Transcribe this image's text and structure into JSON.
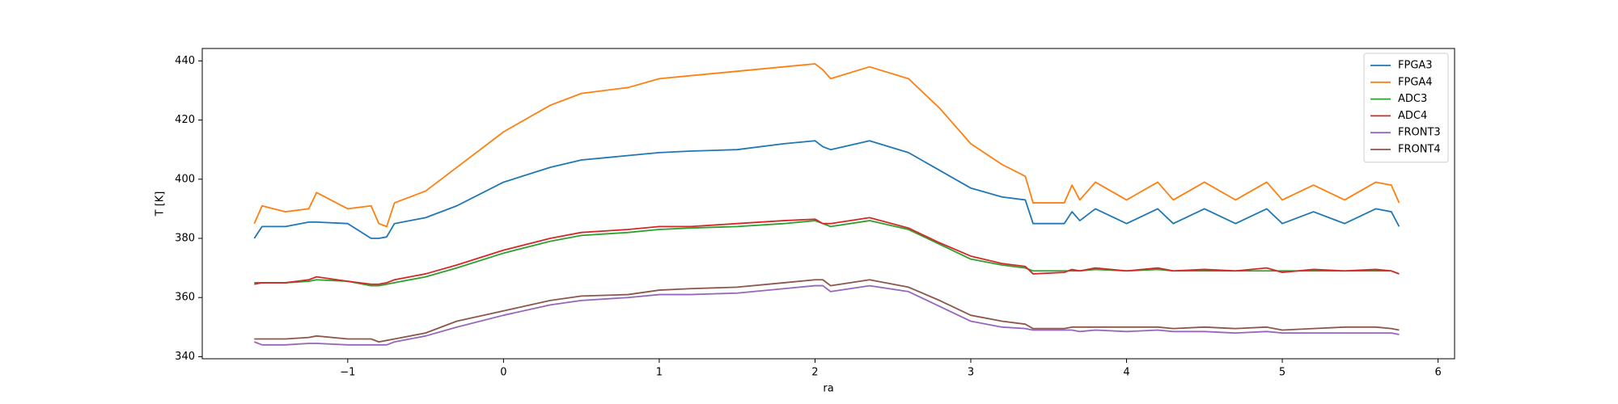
{
  "chart_data": {
    "type": "line",
    "xlabel": "ra",
    "ylabel": "T [K]",
    "x": [
      -1.6,
      -1.55,
      -1.4,
      -1.25,
      -1.2,
      -1.0,
      -0.85,
      -0.8,
      -0.75,
      -0.7,
      -0.5,
      -0.3,
      0,
      0.3,
      0.5,
      0.8,
      1.0,
      1.2,
      1.5,
      1.8,
      2.0,
      2.05,
      2.1,
      2.35,
      2.6,
      2.8,
      3.0,
      3.2,
      3.35,
      3.4,
      3.6,
      3.65,
      3.7,
      3.8,
      4.0,
      4.2,
      4.3,
      4.5,
      4.7,
      4.9,
      5.0,
      5.2,
      5.4,
      5.6,
      5.7,
      5.75
    ],
    "series": [
      {
        "name": "FPGA3",
        "color": "#1f77b4",
        "values": [
          380,
          384,
          384,
          385.5,
          385.5,
          385,
          380,
          380,
          380.5,
          385,
          387,
          391,
          399,
          404,
          406.5,
          408,
          409,
          409.5,
          410,
          412,
          413,
          411,
          410,
          413,
          409,
          403,
          397,
          394,
          393,
          385,
          385,
          389,
          386,
          390,
          385,
          390,
          385,
          390,
          385,
          390,
          385,
          389,
          385,
          390,
          389,
          384
        ]
      },
      {
        "name": "FPGA4",
        "color": "#ff7f0e",
        "values": [
          385,
          391,
          389,
          390,
          395.5,
          390,
          391,
          385,
          384,
          392,
          396,
          404,
          416,
          425,
          429,
          431,
          434,
          435,
          436.5,
          438,
          439,
          437,
          434,
          438,
          434,
          424,
          412,
          405,
          401,
          392,
          392,
          398,
          393,
          399,
          393,
          399,
          393,
          399,
          393,
          399,
          393,
          398,
          393,
          399,
          398,
          392
        ]
      },
      {
        "name": "ADC3",
        "color": "#2ca02c",
        "values": [
          365,
          365,
          365,
          365.5,
          366,
          365.5,
          364,
          364,
          364.5,
          365,
          367,
          370,
          375,
          379,
          381,
          382,
          383,
          383.5,
          384,
          385,
          386,
          385,
          384,
          386,
          383,
          378,
          373,
          371,
          370,
          369,
          369,
          369,
          369,
          369.5,
          369,
          369.5,
          369,
          369,
          369,
          369,
          369,
          369,
          369,
          369,
          369,
          368
        ]
      },
      {
        "name": "ADC4",
        "color": "#d62728",
        "values": [
          364.5,
          365,
          365,
          366,
          367,
          365.5,
          364.5,
          364.5,
          365,
          366,
          368,
          371,
          376,
          380,
          382,
          383,
          384,
          384,
          385,
          386,
          386.5,
          385,
          385,
          387,
          383.5,
          378.5,
          374,
          371.5,
          370.5,
          368,
          368.5,
          369.5,
          369,
          370,
          369,
          370,
          369,
          369.5,
          369,
          370,
          368.5,
          369.5,
          369,
          369.5,
          369,
          368
        ]
      },
      {
        "name": "FRONT3",
        "color": "#9467bd",
        "values": [
          345,
          344,
          344,
          344.5,
          344.5,
          344,
          344,
          344,
          344,
          345,
          347,
          350,
          354,
          357.5,
          359,
          360,
          361,
          361,
          361.5,
          363,
          364,
          364,
          362,
          364,
          362,
          357,
          352,
          350,
          349.5,
          349,
          349,
          349,
          348.5,
          349,
          348.5,
          349,
          348.5,
          348.5,
          348,
          348.5,
          348,
          348,
          348,
          348,
          348,
          347.5
        ]
      },
      {
        "name": "FRONT4",
        "color": "#8c564b",
        "values": [
          346,
          346,
          346,
          346.5,
          347,
          346,
          346,
          345,
          345.5,
          346,
          348,
          352,
          355.5,
          359,
          360.5,
          361,
          362.5,
          363,
          363.5,
          365,
          366,
          366,
          364,
          366,
          363.5,
          359,
          354,
          352,
          351,
          349.5,
          349.5,
          350,
          350,
          350,
          350,
          350,
          349.5,
          350,
          349.5,
          350,
          349,
          349.5,
          350,
          350,
          349.5,
          349
        ]
      }
    ],
    "xlim": [
      -1.934,
      6.106
    ],
    "ylim": [
      339.3,
      444.2
    ],
    "xticks": [
      {
        "value": -1,
        "label": "−1"
      },
      0,
      1,
      2,
      3,
      4,
      5,
      6
    ],
    "yticks": [
      340,
      360,
      380,
      400,
      420,
      440
    ],
    "legend": "upper right",
    "grid": false
  }
}
